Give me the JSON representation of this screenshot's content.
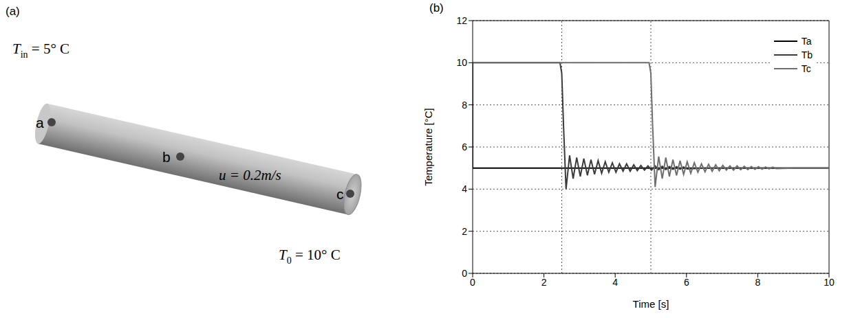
{
  "diagram": {
    "panel_label": "(a)",
    "inlet": {
      "symbol": "T",
      "subscript": "in",
      "equals": "= 5° C"
    },
    "velocity": "u = 0.2m/s",
    "initial": {
      "symbol": "T",
      "subscript": "0",
      "equals": "= 10° C"
    },
    "points": [
      "a",
      "b",
      "c"
    ]
  },
  "chart_data": {
    "type": "line",
    "panel_label": "(b)",
    "x_label": "Time [s]",
    "y_label": "Temperature [°C]",
    "xlim": [
      0,
      10
    ],
    "xticks": [
      0,
      2,
      4,
      6,
      8,
      10
    ],
    "ylim": [
      0,
      12
    ],
    "yticks": [
      0,
      2,
      4,
      6,
      8,
      10,
      12
    ],
    "grid": true,
    "legend": "upper right",
    "vlines": [
      2.5,
      5
    ],
    "series": [
      {
        "name": "Ta",
        "color": "#000000",
        "x": [
          0,
          0,
          10
        ],
        "values": [
          10,
          5,
          5
        ]
      },
      {
        "name": "Tb",
        "color": "#3a3a3a",
        "x": [
          0,
          2.45,
          2.5,
          2.55,
          2.62,
          2.72,
          2.82,
          2.92,
          3.02,
          3.12,
          3.22,
          3.32,
          3.42,
          3.52,
          3.62,
          3.72,
          3.82,
          3.92,
          4.02,
          4.12,
          4.22,
          4.32,
          4.42,
          4.52,
          4.62,
          4.72,
          4.82,
          4.92,
          5.02,
          5.12,
          5.22,
          5.32,
          5.42,
          5.52,
          5.62,
          5.72,
          5.82,
          5.92,
          6.02,
          6.5,
          7,
          7.5,
          8,
          9,
          10
        ],
        "values": [
          10,
          10,
          9.5,
          7,
          4.0,
          5.6,
          4.5,
          5.5,
          4.6,
          5.45,
          4.65,
          5.4,
          4.7,
          5.35,
          4.75,
          5.3,
          4.8,
          5.25,
          4.8,
          5.2,
          4.85,
          5.2,
          4.85,
          5.15,
          4.88,
          5.12,
          4.9,
          5.1,
          4.9,
          5.1,
          4.92,
          5.08,
          4.93,
          5.07,
          4.94,
          5.06,
          4.95,
          5.05,
          4.96,
          5,
          5,
          5,
          5,
          5,
          5
        ]
      },
      {
        "name": "Tc",
        "color": "#6e6e6e",
        "x": [
          0,
          4.95,
          5.0,
          5.05,
          5.12,
          5.22,
          5.32,
          5.42,
          5.52,
          5.62,
          5.72,
          5.82,
          5.92,
          6.02,
          6.12,
          6.22,
          6.32,
          6.42,
          6.52,
          6.62,
          6.72,
          6.82,
          6.92,
          7.02,
          7.12,
          7.22,
          7.32,
          7.42,
          7.52,
          7.62,
          7.72,
          7.82,
          7.92,
          8.02,
          8.12,
          8.22,
          8.32,
          8.42,
          8.52,
          9,
          9.5,
          10
        ],
        "values": [
          10,
          10,
          9.5,
          7,
          4.1,
          5.55,
          4.5,
          5.5,
          4.6,
          5.4,
          4.65,
          5.35,
          4.7,
          5.3,
          4.75,
          5.25,
          4.8,
          5.2,
          4.82,
          5.18,
          4.85,
          5.15,
          4.87,
          5.13,
          4.9,
          5.1,
          4.9,
          5.1,
          4.92,
          5.08,
          4.93,
          5.07,
          4.94,
          5.06,
          4.95,
          5.05,
          4.96,
          5.04,
          4.97,
          5,
          5,
          5
        ]
      }
    ]
  }
}
